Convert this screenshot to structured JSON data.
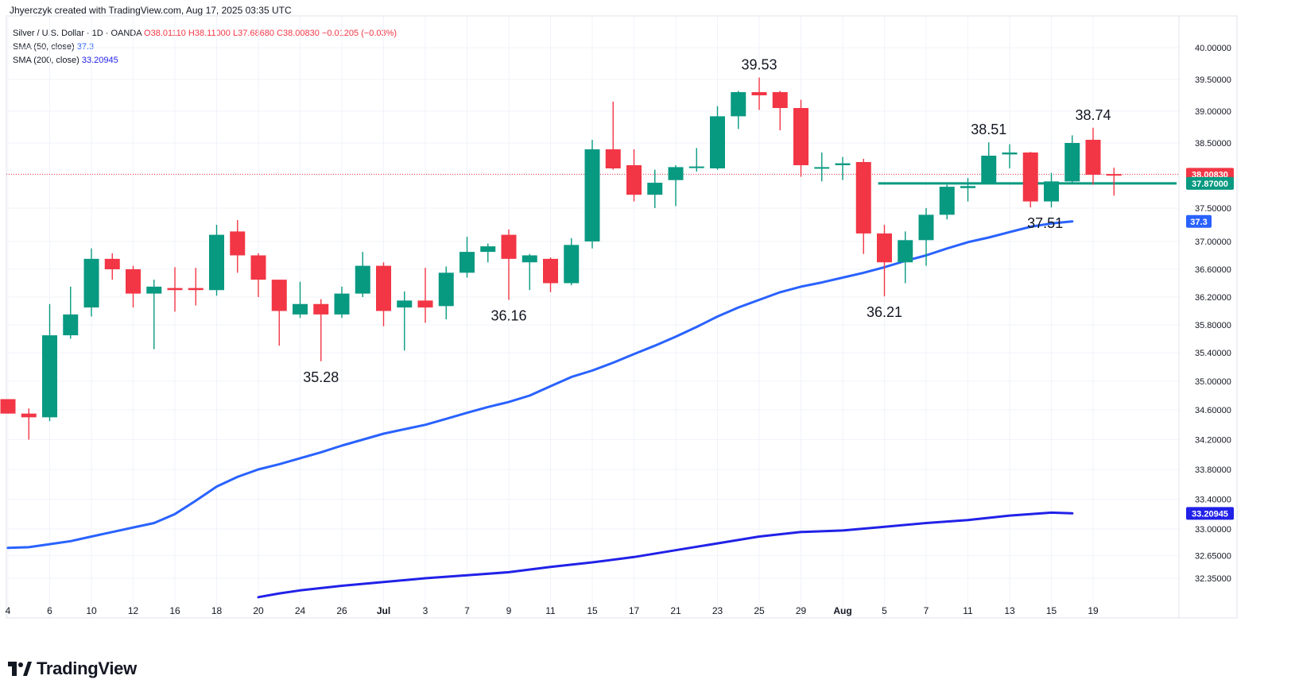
{
  "header": {
    "attribution": "Jhyerczyk created with TradingView.com, Aug 17, 2025 03:35 UTC"
  },
  "legend": {
    "symbol": "Silver / U.S. Dollar · 1D · OANDA",
    "ohlc": "O38.01110  H38.11000  L37.68680  C38.00830  −0.01205 (−0.03%)",
    "sma50_label": "SMA (50, close)",
    "sma50_value": "37.3",
    "sma200_label": "SMA (200, close)",
    "sma200_value": "33.20945"
  },
  "footer": {
    "brand": "TradingView"
  },
  "colors": {
    "up": "#089981",
    "down": "#f23645",
    "sma50": "#2962ff",
    "sma200": "#2121e8",
    "grid": "#f0f3fa",
    "support": "#089981"
  },
  "chart_data": {
    "type": "candlestick",
    "symbol": "Silver / U.S. Dollar",
    "timeframe": "1D",
    "grid": true,
    "price_axis_side": "right",
    "y_ticks": [
      32.35,
      32.65,
      33.0,
      33.4,
      33.8,
      34.2,
      34.6,
      35.0,
      35.4,
      35.8,
      36.2,
      36.6,
      37.0,
      37.5,
      38.0,
      38.5,
      39.0,
      39.5,
      40.0
    ],
    "y_tick_labels": [
      "32.35000",
      "32.65000",
      "33.00000",
      "33.40000",
      "33.80000",
      "34.20000",
      "34.60000",
      "35.00000",
      "35.40000",
      "35.80000",
      "36.20000",
      "36.60000",
      "37.00000",
      "37.50000",
      "38.00000",
      "38.50000",
      "39.00000",
      "39.50000",
      "40.00000"
    ],
    "x_ticks": [
      {
        "d": 0,
        "label": "4"
      },
      {
        "d": 2,
        "label": "6"
      },
      {
        "d": 4,
        "label": "10"
      },
      {
        "d": 6,
        "label": "12"
      },
      {
        "d": 8,
        "label": "16"
      },
      {
        "d": 10,
        "label": "18"
      },
      {
        "d": 12,
        "label": "20"
      },
      {
        "d": 14,
        "label": "24"
      },
      {
        "d": 16,
        "label": "26"
      },
      {
        "d": 18,
        "label": "Jul"
      },
      {
        "d": 20,
        "label": "3"
      },
      {
        "d": 22,
        "label": "7"
      },
      {
        "d": 24,
        "label": "9"
      },
      {
        "d": 26,
        "label": "11"
      },
      {
        "d": 28,
        "label": "15"
      },
      {
        "d": 30,
        "label": "17"
      },
      {
        "d": 32,
        "label": "21"
      },
      {
        "d": 34,
        "label": "23"
      },
      {
        "d": 36,
        "label": "25"
      },
      {
        "d": 38,
        "label": "29"
      },
      {
        "d": 40,
        "label": "Aug"
      },
      {
        "d": 42,
        "label": "5"
      },
      {
        "d": 44,
        "label": "7"
      },
      {
        "d": 46,
        "label": "11"
      },
      {
        "d": 48,
        "label": "13"
      },
      {
        "d": 50,
        "label": "15"
      },
      {
        "d": 52,
        "label": "19"
      }
    ],
    "candles": [
      {
        "o": 34.75,
        "h": 34.75,
        "l": 34.55,
        "c": 34.55
      },
      {
        "o": 34.55,
        "h": 34.62,
        "l": 34.2,
        "c": 34.5
      },
      {
        "o": 34.5,
        "h": 36.1,
        "l": 34.45,
        "c": 35.65
      },
      {
        "o": 35.65,
        "h": 36.35,
        "l": 35.6,
        "c": 35.95
      },
      {
        "o": 36.05,
        "h": 36.9,
        "l": 35.92,
        "c": 36.75
      },
      {
        "o": 36.75,
        "h": 36.83,
        "l": 36.45,
        "c": 36.6
      },
      {
        "o": 36.6,
        "h": 36.65,
        "l": 36.05,
        "c": 36.25
      },
      {
        "o": 36.25,
        "h": 36.45,
        "l": 35.45,
        "c": 36.35
      },
      {
        "o": 36.33,
        "h": 36.63,
        "l": 35.99,
        "c": 36.3
      },
      {
        "o": 36.33,
        "h": 36.62,
        "l": 36.08,
        "c": 36.3
      },
      {
        "o": 36.3,
        "h": 37.25,
        "l": 36.22,
        "c": 37.1
      },
      {
        "o": 37.15,
        "h": 37.32,
        "l": 36.55,
        "c": 36.8
      },
      {
        "o": 36.8,
        "h": 36.83,
        "l": 36.2,
        "c": 36.45
      },
      {
        "o": 36.45,
        "h": 36.45,
        "l": 35.5,
        "c": 36.0
      },
      {
        "o": 35.95,
        "h": 36.42,
        "l": 35.9,
        "c": 36.1
      },
      {
        "o": 36.1,
        "h": 36.17,
        "l": 35.28,
        "c": 35.95
      },
      {
        "o": 35.95,
        "h": 36.35,
        "l": 35.9,
        "c": 36.25
      },
      {
        "o": 36.25,
        "h": 36.85,
        "l": 36.2,
        "c": 36.65
      },
      {
        "o": 36.65,
        "h": 36.7,
        "l": 35.78,
        "c": 36.0
      },
      {
        "o": 36.05,
        "h": 36.28,
        "l": 35.43,
        "c": 36.15
      },
      {
        "o": 36.15,
        "h": 36.62,
        "l": 35.83,
        "c": 36.05
      },
      {
        "o": 36.07,
        "h": 36.64,
        "l": 35.88,
        "c": 36.55
      },
      {
        "o": 36.55,
        "h": 37.07,
        "l": 36.48,
        "c": 36.85
      },
      {
        "o": 36.85,
        "h": 36.97,
        "l": 36.7,
        "c": 36.93
      },
      {
        "o": 37.1,
        "h": 37.18,
        "l": 36.16,
        "c": 36.75
      },
      {
        "o": 36.7,
        "h": 36.82,
        "l": 36.3,
        "c": 36.8
      },
      {
        "o": 36.75,
        "h": 36.77,
        "l": 36.27,
        "c": 36.4
      },
      {
        "o": 36.4,
        "h": 37.05,
        "l": 36.37,
        "c": 36.95
      },
      {
        "o": 37.0,
        "h": 38.55,
        "l": 36.9,
        "c": 38.4
      },
      {
        "o": 38.4,
        "h": 39.15,
        "l": 38.08,
        "c": 38.1
      },
      {
        "o": 38.15,
        "h": 38.4,
        "l": 37.6,
        "c": 37.7
      },
      {
        "o": 37.7,
        "h": 38.08,
        "l": 37.5,
        "c": 37.88
      },
      {
        "o": 37.92,
        "h": 38.15,
        "l": 37.53,
        "c": 38.12
      },
      {
        "o": 38.12,
        "h": 38.42,
        "l": 38.05,
        "c": 38.13
      },
      {
        "o": 38.1,
        "h": 39.08,
        "l": 38.08,
        "c": 38.92
      },
      {
        "o": 38.92,
        "h": 39.32,
        "l": 38.72,
        "c": 39.3
      },
      {
        "o": 39.3,
        "h": 39.53,
        "l": 39.02,
        "c": 39.25
      },
      {
        "o": 39.3,
        "h": 39.32,
        "l": 38.7,
        "c": 39.05
      },
      {
        "o": 39.05,
        "h": 39.18,
        "l": 37.97,
        "c": 38.15
      },
      {
        "o": 38.12,
        "h": 38.35,
        "l": 37.9,
        "c": 38.12
      },
      {
        "o": 38.15,
        "h": 38.28,
        "l": 37.92,
        "c": 38.18
      },
      {
        "o": 38.2,
        "h": 38.25,
        "l": 36.82,
        "c": 37.12
      },
      {
        "o": 37.12,
        "h": 37.25,
        "l": 36.21,
        "c": 36.7
      },
      {
        "o": 36.7,
        "h": 37.15,
        "l": 36.4,
        "c": 37.02
      },
      {
        "o": 37.02,
        "h": 37.5,
        "l": 36.65,
        "c": 37.4
      },
      {
        "o": 37.4,
        "h": 37.85,
        "l": 37.33,
        "c": 37.82
      },
      {
        "o": 37.8,
        "h": 37.95,
        "l": 37.6,
        "c": 37.83
      },
      {
        "o": 37.87,
        "h": 38.51,
        "l": 37.87,
        "c": 38.3
      },
      {
        "o": 38.32,
        "h": 38.48,
        "l": 38.1,
        "c": 38.35
      },
      {
        "o": 38.35,
        "h": 38.36,
        "l": 37.51,
        "c": 37.6
      },
      {
        "o": 37.6,
        "h": 38.03,
        "l": 37.51,
        "c": 37.9
      },
      {
        "o": 37.9,
        "h": 38.62,
        "l": 37.88,
        "c": 38.5
      },
      {
        "o": 38.55,
        "h": 38.74,
        "l": 37.85,
        "c": 38.0
      },
      {
        "o": 38.0111,
        "h": 38.11,
        "l": 37.6868,
        "c": 38.0083
      }
    ],
    "sma50": [
      {
        "d": 0,
        "v": 32.75
      },
      {
        "d": 1,
        "v": 32.76
      },
      {
        "d": 2,
        "v": 32.8
      },
      {
        "d": 3,
        "v": 32.84
      },
      {
        "d": 4,
        "v": 32.9
      },
      {
        "d": 5,
        "v": 32.96
      },
      {
        "d": 6,
        "v": 33.02
      },
      {
        "d": 7,
        "v": 33.08
      },
      {
        "d": 8,
        "v": 33.2
      },
      {
        "d": 9,
        "v": 33.38
      },
      {
        "d": 10,
        "v": 33.57
      },
      {
        "d": 11,
        "v": 33.7
      },
      {
        "d": 12,
        "v": 33.8
      },
      {
        "d": 13,
        "v": 33.87
      },
      {
        "d": 14,
        "v": 33.95
      },
      {
        "d": 15,
        "v": 34.03
      },
      {
        "d": 16,
        "v": 34.12
      },
      {
        "d": 17,
        "v": 34.2
      },
      {
        "d": 18,
        "v": 34.28
      },
      {
        "d": 19,
        "v": 34.34
      },
      {
        "d": 20,
        "v": 34.4
      },
      {
        "d": 21,
        "v": 34.48
      },
      {
        "d": 22,
        "v": 34.56
      },
      {
        "d": 23,
        "v": 34.64
      },
      {
        "d": 24,
        "v": 34.71
      },
      {
        "d": 25,
        "v": 34.8
      },
      {
        "d": 26,
        "v": 34.93
      },
      {
        "d": 27,
        "v": 35.06
      },
      {
        "d": 28,
        "v": 35.15
      },
      {
        "d": 29,
        "v": 35.26
      },
      {
        "d": 30,
        "v": 35.38
      },
      {
        "d": 31,
        "v": 35.5
      },
      {
        "d": 32,
        "v": 35.63
      },
      {
        "d": 33,
        "v": 35.77
      },
      {
        "d": 34,
        "v": 35.92
      },
      {
        "d": 35,
        "v": 36.05
      },
      {
        "d": 36,
        "v": 36.16
      },
      {
        "d": 37,
        "v": 36.27
      },
      {
        "d": 38,
        "v": 36.35
      },
      {
        "d": 39,
        "v": 36.41
      },
      {
        "d": 40,
        "v": 36.48
      },
      {
        "d": 41,
        "v": 36.55
      },
      {
        "d": 42,
        "v": 36.63
      },
      {
        "d": 43,
        "v": 36.72
      },
      {
        "d": 44,
        "v": 36.8
      },
      {
        "d": 45,
        "v": 36.9
      },
      {
        "d": 46,
        "v": 36.99
      },
      {
        "d": 47,
        "v": 37.06
      },
      {
        "d": 48,
        "v": 37.14
      },
      {
        "d": 49,
        "v": 37.22
      },
      {
        "d": 50,
        "v": 37.27
      },
      {
        "d": 51,
        "v": 37.3
      }
    ],
    "sma200": [
      {
        "d": 12,
        "v": 32.1
      },
      {
        "d": 13,
        "v": 32.15
      },
      {
        "d": 14,
        "v": 32.19
      },
      {
        "d": 16,
        "v": 32.25
      },
      {
        "d": 18,
        "v": 32.3
      },
      {
        "d": 20,
        "v": 32.35
      },
      {
        "d": 22,
        "v": 32.39
      },
      {
        "d": 24,
        "v": 32.43
      },
      {
        "d": 26,
        "v": 32.5
      },
      {
        "d": 28,
        "v": 32.56
      },
      {
        "d": 30,
        "v": 32.63
      },
      {
        "d": 32,
        "v": 32.72
      },
      {
        "d": 34,
        "v": 32.81
      },
      {
        "d": 36,
        "v": 32.9
      },
      {
        "d": 38,
        "v": 32.96
      },
      {
        "d": 40,
        "v": 32.98
      },
      {
        "d": 42,
        "v": 33.03
      },
      {
        "d": 44,
        "v": 33.08
      },
      {
        "d": 46,
        "v": 33.12
      },
      {
        "d": 48,
        "v": 33.18
      },
      {
        "d": 50,
        "v": 33.22
      },
      {
        "d": 51,
        "v": 33.21
      }
    ],
    "support_line": {
      "value": 37.87,
      "from_d": 41.7,
      "to_d": 56
    },
    "current_price_line": {
      "value": 38.0083
    },
    "price_labels": [
      {
        "text": "38.00830",
        "value": 38.0083,
        "color": "#f23645"
      },
      {
        "text": "37.87000",
        "value": 37.87,
        "color": "#089981"
      },
      {
        "text": "37.3",
        "value": 37.3,
        "color": "#2962ff"
      },
      {
        "text": "33.20945",
        "value": 33.20945,
        "color": "#2121e8"
      }
    ],
    "annotations": [
      {
        "text": "35.28",
        "d": 15,
        "value": 35.28,
        "pos": "below"
      },
      {
        "text": "36.16",
        "d": 24,
        "value": 36.16,
        "pos": "below"
      },
      {
        "text": "39.53",
        "d": 36,
        "value": 39.53,
        "pos": "above"
      },
      {
        "text": "36.21",
        "d": 42,
        "value": 36.21,
        "pos": "below"
      },
      {
        "text": "38.51",
        "d": 47,
        "value": 38.51,
        "pos": "above"
      },
      {
        "text": "37.51",
        "d": 49.7,
        "value": 37.51,
        "pos": "below"
      },
      {
        "text": "38.74",
        "d": 52,
        "value": 38.74,
        "pos": "above"
      }
    ]
  }
}
